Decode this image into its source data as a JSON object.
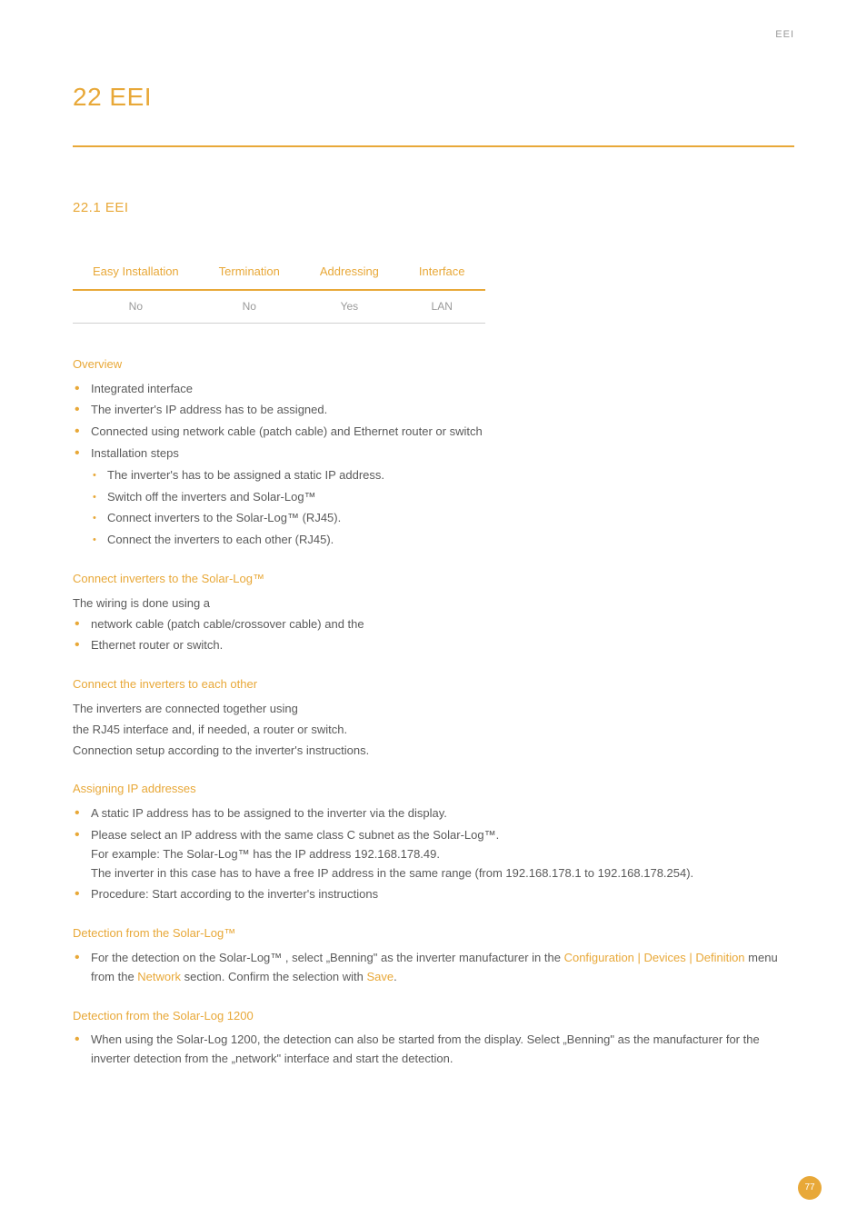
{
  "header": {
    "label": "EEI"
  },
  "chapter": {
    "title": "22 EEI"
  },
  "section": {
    "title": "22.1   EEI"
  },
  "table": {
    "headers": [
      "Easy Installation",
      "Termination",
      "Addressing",
      "Interface"
    ],
    "row": [
      "No",
      "No",
      "Yes",
      "LAN"
    ]
  },
  "overview": {
    "heading": "Overview",
    "items": [
      "Integrated interface",
      "The inverter's IP address has to be assigned.",
      "Connected using network cable (patch cable) and Ethernet router or switch",
      "Installation steps"
    ],
    "subitems": [
      "The inverter's has to be assigned a static IP address.",
      "Switch off the inverters and Solar-Log™",
      "Connect inverters to the Solar-Log™ (RJ45).",
      "Connect the inverters to each other (RJ45)."
    ]
  },
  "connect_sl": {
    "heading": "Connect inverters to the Solar-Log™",
    "intro": "The wiring is done using a",
    "items": [
      "network cable (patch cable/crossover cable) and the",
      "Ethernet router or switch."
    ]
  },
  "connect_each": {
    "heading": "Connect the inverters to each other",
    "lines": [
      "The inverters are connected together using",
      "the RJ45 interface and, if needed, a router or switch.",
      "Connection setup according to the inverter's instructions."
    ]
  },
  "ip": {
    "heading": "Assigning IP addresses",
    "item1": "A static IP address has to be assigned to the inverter via the display.",
    "item2_l1": "Please select an IP address with the same class C subnet as the Solar-Log™.",
    "item2_l2": "For example: The Solar-Log™ has the IP address 192.168.178.49.",
    "item2_l3": "The inverter in this case has to have a free IP address in the same range (from 192.168.178.1 to 192.168.178.254).",
    "item3": "Procedure: Start according to the inverter's instructions"
  },
  "detect_sl": {
    "heading": "Detection from the Solar-Log™",
    "pre": "For the detection on the Solar-Log™ , select „Benning\" as the inverter manufacturer in the ",
    "link1": "Configuration | Devices | Definition",
    "mid": " menu from the ",
    "link2": "Network",
    "post": " section. Confirm the selection with ",
    "link3": "Save",
    "end": "."
  },
  "detect_1200": {
    "heading": "Detection from the Solar-Log 1200",
    "text": "When using the Solar-Log 1200, the detection can also be started from the display. Select „Benning\" as the manufacturer for the inverter detection from the „network\" interface and start the detection."
  },
  "page_number": "77",
  "colors": {
    "accent": "#e8a838",
    "text": "#5a5a5a",
    "muted": "#9a9a9a"
  }
}
